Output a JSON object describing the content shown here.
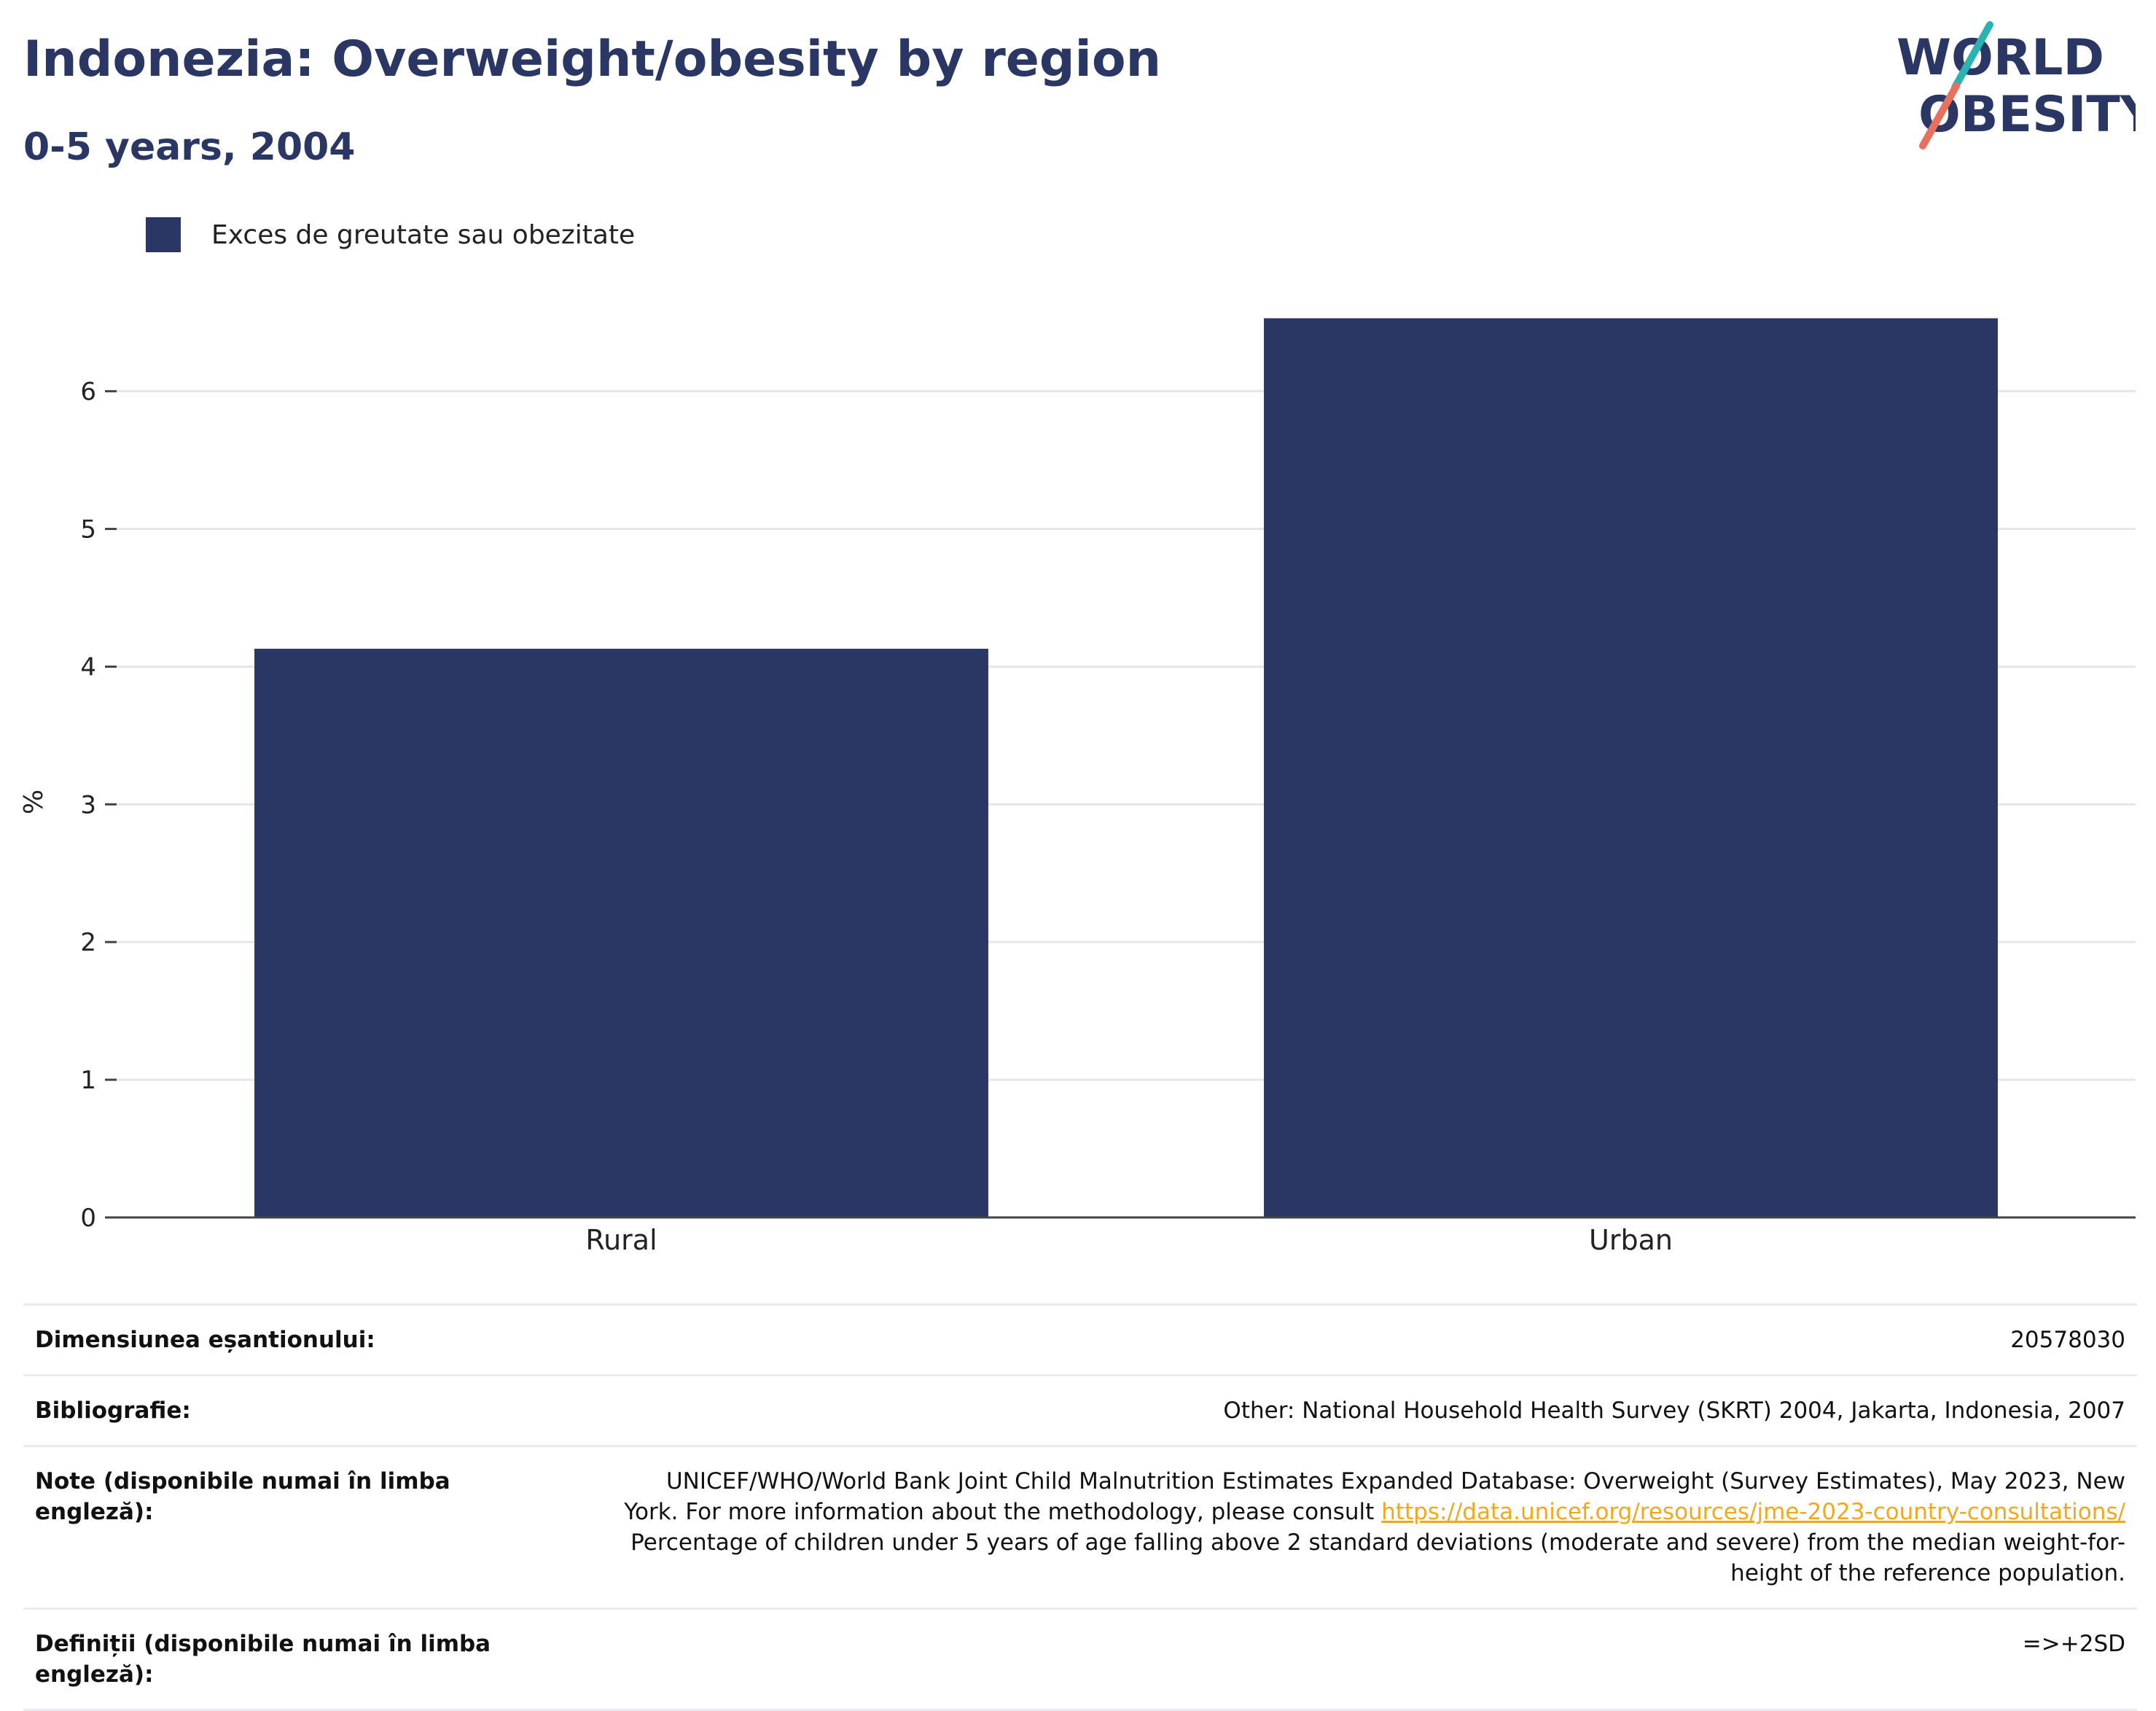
{
  "header": {
    "title": "Indonezia: Overweight/obesity by region",
    "subtitle": "0-5 years, 2004"
  },
  "logo": {
    "line1": "WORLD",
    "line2": "OBESITY"
  },
  "colors": {
    "bar": "#2a3663",
    "title": "#2a3663",
    "grid": "#e6e6e6",
    "link": "#f2a81d",
    "logo_teal": "#2bb3b1",
    "logo_coral": "#e8705e"
  },
  "chart_data": {
    "type": "bar",
    "categories": [
      "Rural",
      "Urban"
    ],
    "series": [
      {
        "name": "Exces de greutate sau obezitate",
        "values": [
          4.13,
          6.53
        ]
      }
    ],
    "ylabel": "%",
    "ylim": [
      0,
      7.2
    ],
    "yticks": [
      0,
      1,
      2,
      3,
      4,
      5,
      6
    ],
    "grid": true,
    "legend": "top-left"
  },
  "meta": {
    "sample_size_label": "Dimensiunea eșantionului:",
    "sample_size_value": "20578030",
    "bibliography_label": "Bibliografie:",
    "bibliography_value": "Other: National Household Health Survey (SKRT) 2004, Jakarta, Indonesia, 2007",
    "notes_label": "Note (disponibile numai în limba engleză):",
    "notes_line1": "UNICEF/WHO/World Bank Joint Child Malnutrition Estimates Expanded Database: Overweight (Survey Estimates), May 2023, New",
    "notes_line2_prefix": "York. For more information about the methodology, please consult ",
    "notes_link": "https://data.unicef.org/resources/jme-2023-country-consultations/",
    "notes_line3": "Percentage of children under 5 years of age falling above 2 standard deviations (moderate and severe) from the median weight-for-",
    "notes_line4": "height of the reference population.",
    "definitions_label": "Definiții (disponibile numai în limba engleză):",
    "definitions_value": "=>+2SD"
  }
}
